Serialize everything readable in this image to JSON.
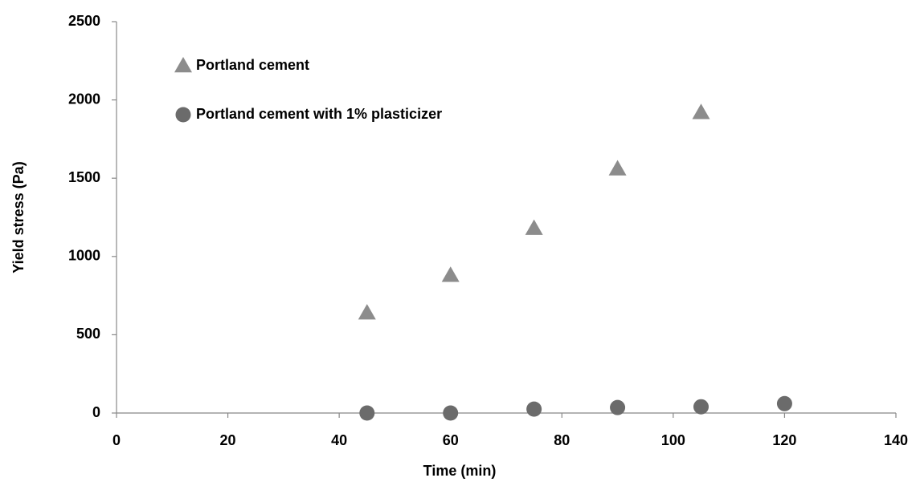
{
  "chart_data": {
    "type": "scatter",
    "xlabel": "Time (min)",
    "ylabel": "Yield stress (Pa)",
    "series": [
      {
        "name": "Portland cement",
        "color": "#8c8c8c",
        "marker": "triangle",
        "x": [
          45,
          60,
          75,
          90,
          105
        ],
        "values": [
          640,
          880,
          1180,
          1560,
          1920
        ]
      },
      {
        "name": "Portland cement with 1% plasticizer",
        "color": "#6b6b6b",
        "marker": "circle",
        "x": [
          45,
          60,
          75,
          90,
          105,
          120
        ],
        "values": [
          0,
          0,
          25,
          35,
          40,
          60
        ]
      }
    ],
    "xlim": [
      0,
      140
    ],
    "xticks": [
      0,
      20,
      40,
      60,
      80,
      100,
      120,
      140
    ],
    "ylim": [
      0,
      2500
    ],
    "yticks": [
      0,
      500,
      1000,
      1500,
      2000,
      2500
    ],
    "grid": false,
    "legend": "upper left"
  }
}
